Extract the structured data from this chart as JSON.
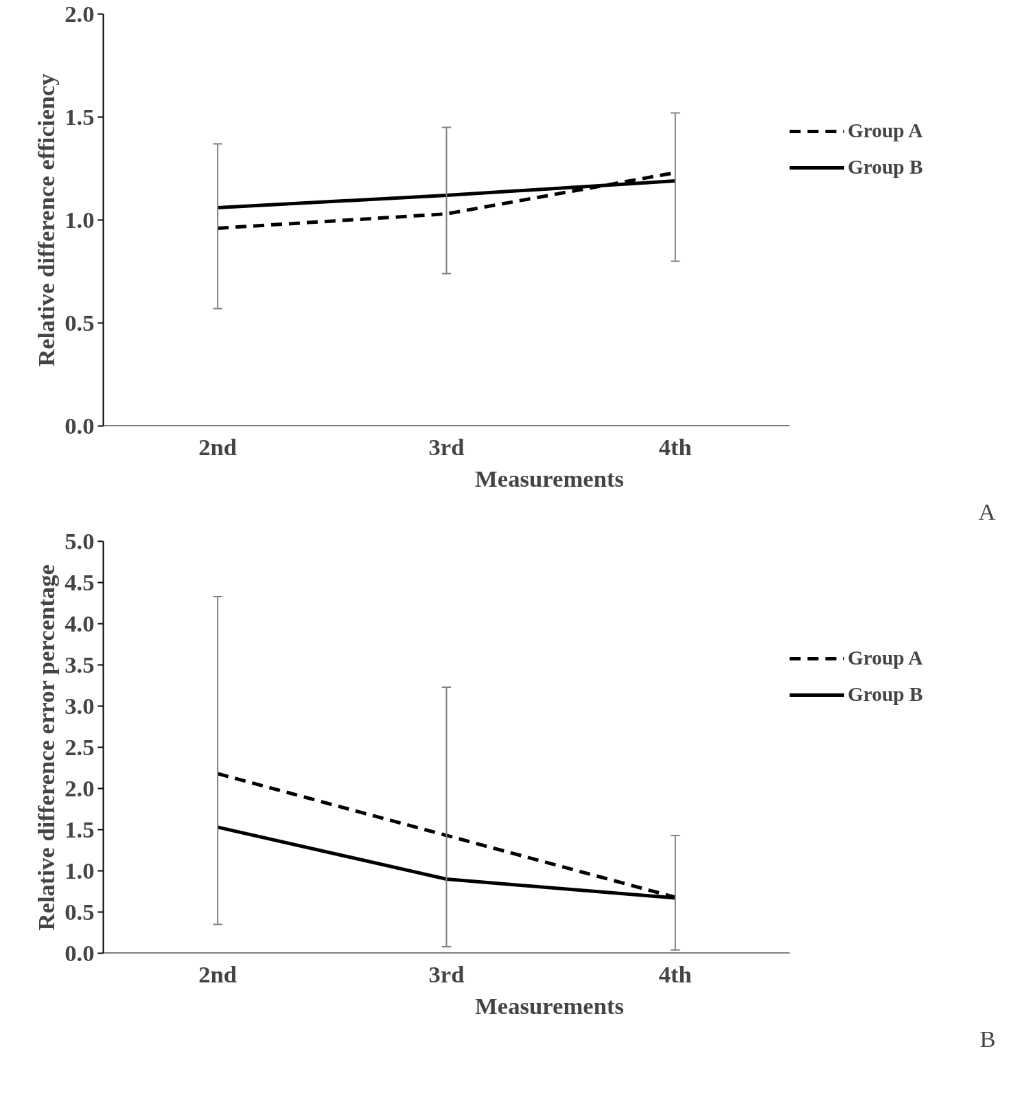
{
  "chart_data": [
    {
      "type": "line",
      "xlabel": "Measurements",
      "ylabel": "Relative difference efficiency",
      "categories": [
        "2nd",
        "3rd",
        "4th"
      ],
      "ylim": [
        0,
        2
      ],
      "yticks": [
        {
          "value": 0,
          "label": "0.0"
        },
        {
          "value": 0.5,
          "label": "0.5"
        },
        {
          "value": 1,
          "label": "1.0"
        },
        {
          "value": 1.5,
          "label": "1.5"
        },
        {
          "value": 2,
          "label": "2.0"
        }
      ],
      "grid": false,
      "legend": "right",
      "annotations": [
        "A"
      ],
      "series": [
        {
          "name": "Group A",
          "color": "#000000",
          "line_style": "dashed",
          "values": [
            0.96,
            1.03,
            1.23
          ],
          "errors": [
            [
              0.57,
              1.37
            ],
            [
              0.74,
              1.45
            ],
            [
              0.8,
              1.52
            ]
          ]
        },
        {
          "name": "Group B",
          "color": "#000000",
          "line_style": "solid",
          "values": [
            1.06,
            1.12,
            1.19
          ]
        }
      ]
    },
    {
      "type": "line",
      "xlabel": "Measurements",
      "ylabel": "Relative difference error percentage",
      "categories": [
        "2nd",
        "3rd",
        "4th"
      ],
      "ylim": [
        0,
        5
      ],
      "yticks": [
        {
          "value": 0,
          "label": "0.0"
        },
        {
          "value": 0.5,
          "label": "0.5"
        },
        {
          "value": 1,
          "label": "1.0"
        },
        {
          "value": 1.5,
          "label": "1.5"
        },
        {
          "value": 2,
          "label": "2.0"
        },
        {
          "value": 2.5,
          "label": "2.5"
        },
        {
          "value": 3,
          "label": "3.0"
        },
        {
          "value": 3.5,
          "label": "3.5"
        },
        {
          "value": 4,
          "label": "4.0"
        },
        {
          "value": 4.5,
          "label": "4.5"
        },
        {
          "value": 5,
          "label": "5.0"
        }
      ],
      "grid": false,
      "legend": "right",
      "annotations": [
        "B"
      ],
      "series": [
        {
          "name": "Group A",
          "color": "#000000",
          "line_style": "dashed",
          "values": [
            2.18,
            1.43,
            0.68
          ],
          "errors": [
            [
              0.35,
              4.33
            ],
            [
              0.08,
              3.23
            ],
            [
              0.04,
              1.43
            ]
          ]
        },
        {
          "name": "Group B",
          "color": "#000000",
          "line_style": "solid",
          "values": [
            1.53,
            0.9,
            0.67
          ]
        }
      ]
    }
  ]
}
